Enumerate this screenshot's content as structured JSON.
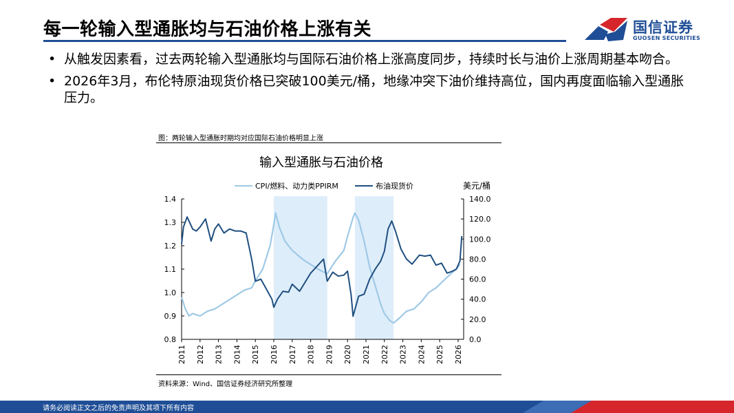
{
  "header": {
    "title": "每一轮输入型通胀均与石油价格上涨有关",
    "logo_cn": "国信证券",
    "logo_en": "GUOSEN SECURITIES"
  },
  "bullets": [
    "从触发因素看，过去两轮输入型通胀均与国际石油价格上涨高度同步，持续时长与油价上涨周期基本吻合。",
    "2026年3月，布伦特原油现货价格已突破100美元/桶，地缘冲突下油价维持高位，国内再度面临输入型通胀压力。"
  ],
  "bullet_symbol": "•",
  "figure": {
    "caption": "图：两轮输入型通胀时期均对应国际石油价格明显上涨",
    "source": "资料来源：Wind、国信证券经济研究所整理"
  },
  "footer": {
    "disclaimer": "请务必阅读正文之后的免责声明及其项下所有内容"
  },
  "colors": {
    "brand_blue": "#1f4e96",
    "logo_red": "#d6252b",
    "cpi_line": "#9ec9e6",
    "brent_line": "#1f4f80",
    "shade": "#deedfa"
  },
  "chart_data": {
    "type": "line",
    "title": "输入型通胀与石油价格",
    "right_unit": "美元/桶",
    "legend_position": "top",
    "grid": false,
    "x_ticks": [
      "2011",
      "2012",
      "2013",
      "2014",
      "2015",
      "2016",
      "2017",
      "2018",
      "2019",
      "2020",
      "2021",
      "2022",
      "2023",
      "2024",
      "2025",
      "2026"
    ],
    "y_left": {
      "range": [
        0.8,
        1.4
      ],
      "ticks": [
        "0.8",
        "0.9",
        "1.0",
        "1.1",
        "1.2",
        "1.3",
        "1.4"
      ]
    },
    "y_right": {
      "range": [
        0,
        140
      ],
      "ticks": [
        "0.0",
        "20.0",
        "40.0",
        "60.0",
        "80.0",
        "100.0",
        "120.0",
        "140.0"
      ]
    },
    "shaded_periods": [
      [
        2016.0,
        2018.9
      ],
      [
        2020.4,
        2022.5
      ]
    ],
    "series": [
      {
        "name": "CPI/燃料、动力类PPIRM",
        "axis": "left",
        "x": [
          2011.0,
          2011.2,
          2011.4,
          2011.6,
          2012.0,
          2012.4,
          2012.8,
          2013.2,
          2013.6,
          2014.0,
          2014.4,
          2014.8,
          2015.0,
          2015.4,
          2015.8,
          2016.0,
          2016.1,
          2016.3,
          2016.6,
          2017.0,
          2017.3,
          2017.6,
          2018.0,
          2018.4,
          2018.9,
          2019.3,
          2019.8,
          2020.0,
          2020.3,
          2020.4,
          2020.6,
          2020.9,
          2021.2,
          2021.5,
          2021.8,
          2022.0,
          2022.3,
          2022.5,
          2022.8,
          2023.2,
          2023.6,
          2024.0,
          2024.4,
          2024.8,
          2025.2,
          2025.6,
          2025.9,
          2026.1
        ],
        "values": [
          0.98,
          0.93,
          0.9,
          0.91,
          0.9,
          0.92,
          0.93,
          0.95,
          0.97,
          0.99,
          1.01,
          1.02,
          1.05,
          1.1,
          1.2,
          1.29,
          1.34,
          1.28,
          1.22,
          1.18,
          1.16,
          1.14,
          1.12,
          1.1,
          1.08,
          1.13,
          1.18,
          1.24,
          1.32,
          1.34,
          1.31,
          1.22,
          1.11,
          1.03,
          0.95,
          0.91,
          0.88,
          0.87,
          0.89,
          0.92,
          0.93,
          0.96,
          1.0,
          1.02,
          1.05,
          1.08,
          1.1,
          1.12
        ]
      },
      {
        "name": "布油现货价",
        "axis": "right",
        "x": [
          2011.0,
          2011.1,
          2011.3,
          2011.6,
          2011.8,
          2012.0,
          2012.3,
          2012.6,
          2012.8,
          2013.0,
          2013.3,
          2013.6,
          2013.9,
          2014.2,
          2014.5,
          2014.8,
          2015.0,
          2015.3,
          2015.6,
          2015.9,
          2016.0,
          2016.2,
          2016.5,
          2016.8,
          2017.0,
          2017.4,
          2017.8,
          2018.0,
          2018.4,
          2018.7,
          2018.9,
          2019.2,
          2019.5,
          2019.8,
          2020.0,
          2020.2,
          2020.3,
          2020.6,
          2020.9,
          2021.2,
          2021.5,
          2021.8,
          2022.0,
          2022.2,
          2022.4,
          2022.6,
          2022.9,
          2023.2,
          2023.5,
          2023.9,
          2024.2,
          2024.5,
          2024.8,
          2025.1,
          2025.4,
          2025.7,
          2025.9,
          2026.1,
          2026.2
        ],
        "values": [
          95,
          112,
          122,
          110,
          108,
          112,
          120,
          98,
          110,
          115,
          106,
          110,
          108,
          108,
          106,
          80,
          58,
          60,
          50,
          40,
          32,
          40,
          48,
          47,
          55,
          48,
          60,
          66,
          74,
          80,
          58,
          67,
          63,
          64,
          68,
          44,
          23,
          43,
          45,
          60,
          70,
          78,
          88,
          110,
          118,
          108,
          90,
          80,
          75,
          84,
          83,
          84,
          74,
          76,
          66,
          68,
          70,
          78,
          103
        ]
      }
    ]
  }
}
